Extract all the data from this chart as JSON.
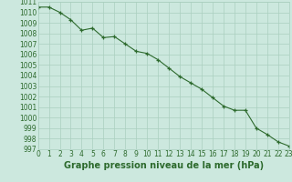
{
  "x": [
    0,
    1,
    2,
    3,
    4,
    5,
    6,
    7,
    8,
    9,
    10,
    11,
    12,
    13,
    14,
    15,
    16,
    17,
    18,
    19,
    20,
    21,
    22,
    23
  ],
  "y": [
    1010.5,
    1010.5,
    1010.0,
    1009.3,
    1008.3,
    1008.5,
    1007.6,
    1007.7,
    1007.0,
    1006.3,
    1006.1,
    1005.5,
    1004.7,
    1003.9,
    1003.3,
    1002.7,
    1001.9,
    1001.1,
    1000.7,
    1000.7,
    999.0,
    998.4,
    997.7,
    997.3
  ],
  "line_color": "#2d6a2d",
  "marker_color": "#2d6a2d",
  "bg_color": "#cce8de",
  "grid_color": "#aacfbf",
  "title": "Graphe pression niveau de la mer (hPa)",
  "ylim_min": 997,
  "ylim_max": 1011,
  "xlim_min": 0,
  "xlim_max": 23,
  "yticks": [
    997,
    998,
    999,
    1000,
    1001,
    1002,
    1003,
    1004,
    1005,
    1006,
    1007,
    1008,
    1009,
    1010,
    1011
  ],
  "xticks": [
    0,
    1,
    2,
    3,
    4,
    5,
    6,
    7,
    8,
    9,
    10,
    11,
    12,
    13,
    14,
    15,
    16,
    17,
    18,
    19,
    20,
    21,
    22,
    23
  ],
  "tick_color": "#2d6a2d",
  "tick_fontsize": 5.5,
  "title_fontsize": 7.0,
  "title_fontweight": "bold"
}
